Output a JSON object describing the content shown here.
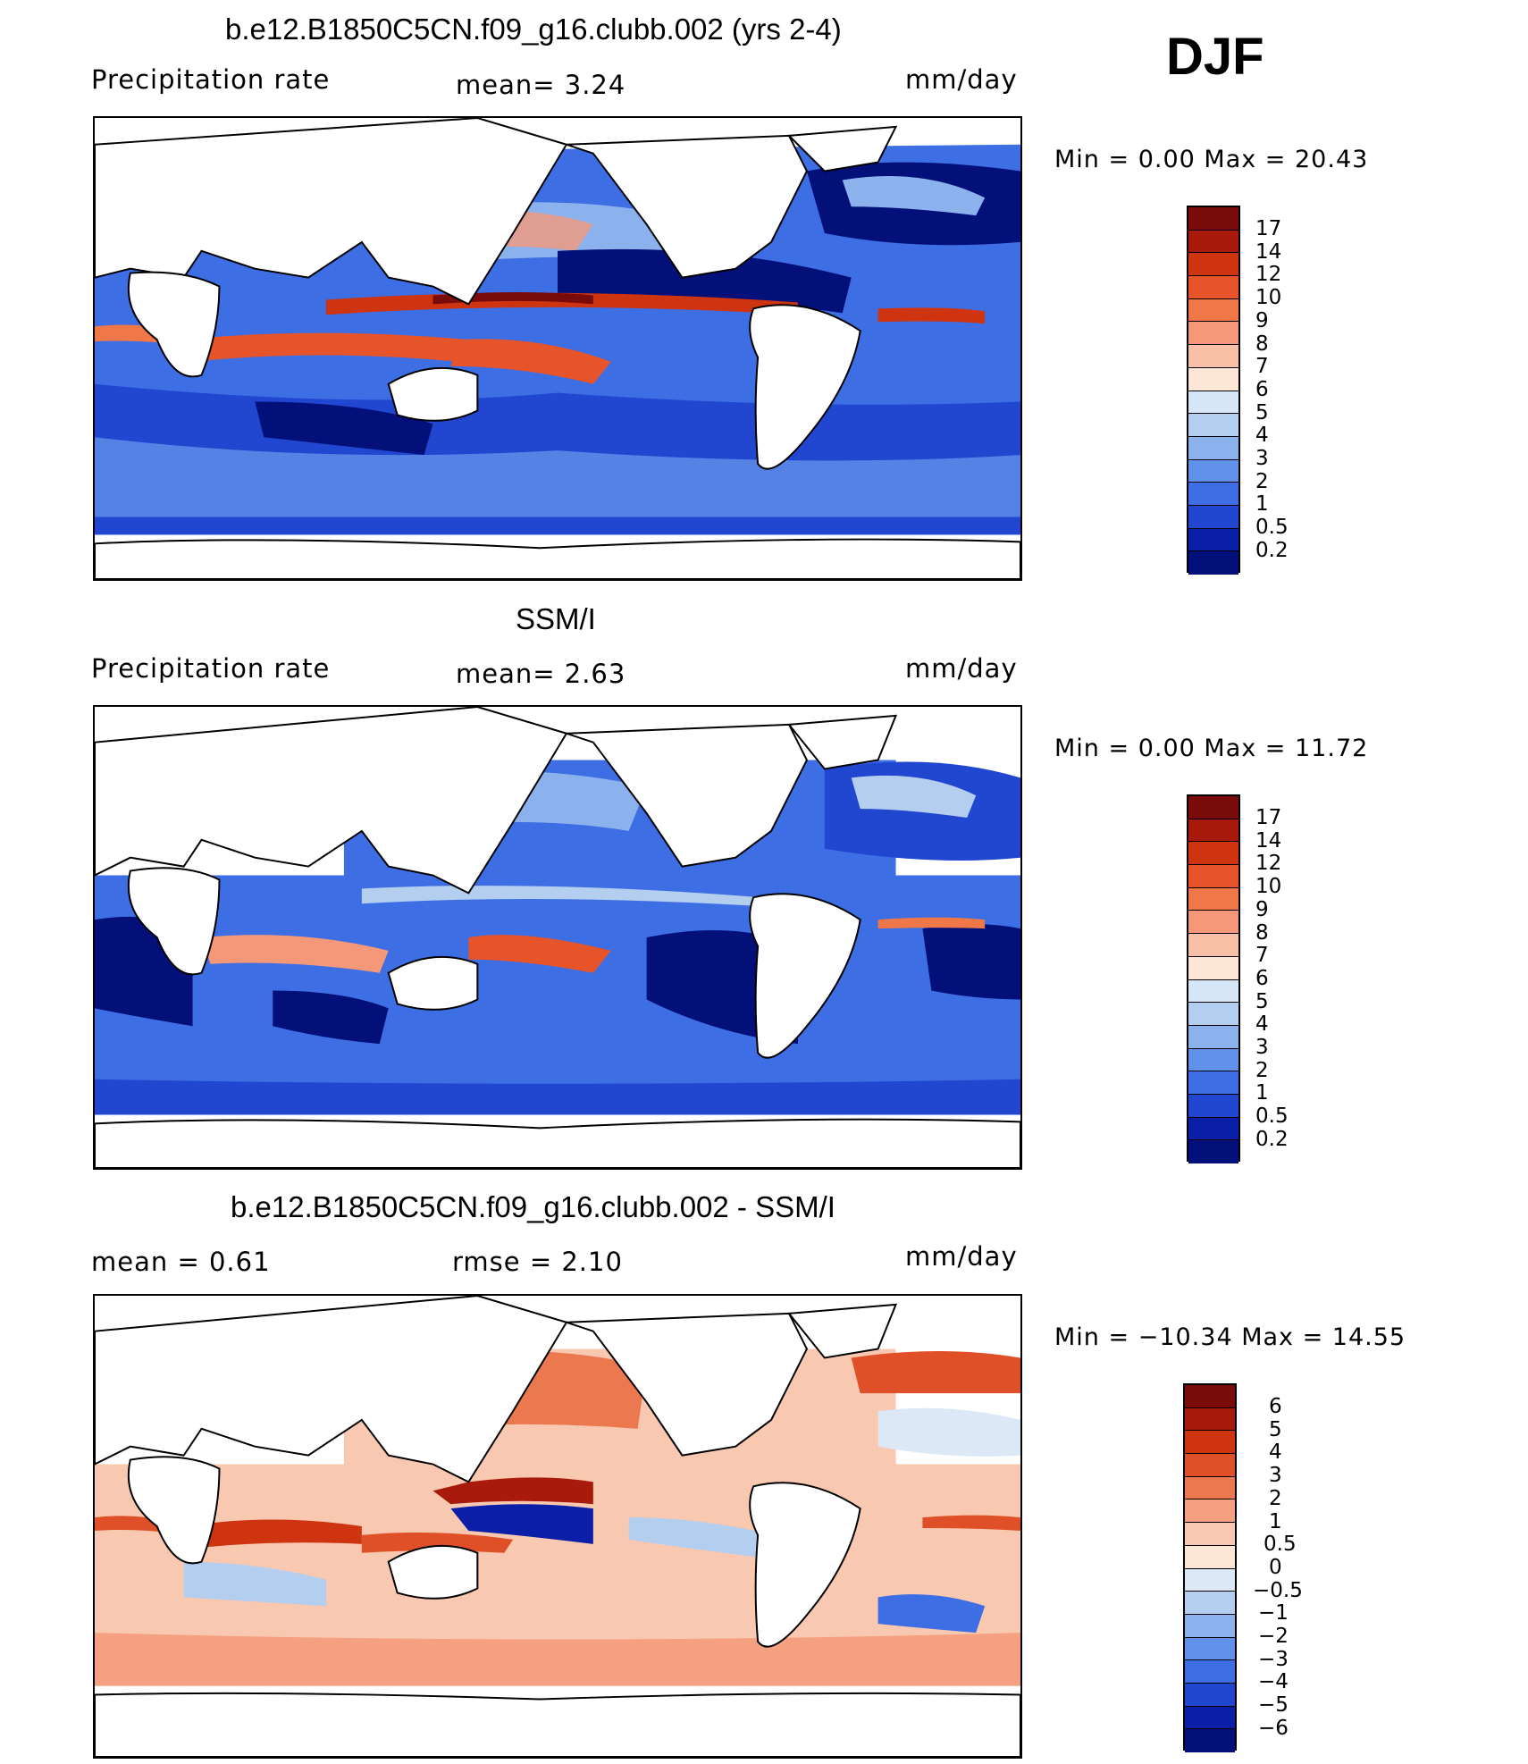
{
  "header": {
    "season": "DJF"
  },
  "panels": [
    {
      "title": "b.e12.B1850C5CN.f09_g16.clubb.002 (yrs 2-4)",
      "left_label": "Precipitation  rate",
      "stat1": "mean=    3.24",
      "stat2": "",
      "units": "mm/day",
      "minmax": "Min  =      0.00  Max  =     20.43",
      "levels": [
        "17",
        "14",
        "12",
        "10",
        "9",
        "8",
        "7",
        "6",
        "5",
        "4",
        "3",
        "2",
        "1",
        "0.5",
        "0.2"
      ]
    },
    {
      "title": "SSM/I",
      "left_label": "Precipitation  rate",
      "stat1": "mean=    2.63",
      "stat2": "",
      "units": "mm/day",
      "minmax": "Min  =      0.00  Max  =     11.72",
      "levels": [
        "17",
        "14",
        "12",
        "10",
        "9",
        "8",
        "7",
        "6",
        "5",
        "4",
        "3",
        "2",
        "1",
        "0.5",
        "0.2"
      ]
    },
    {
      "title": "b.e12.B1850C5CN.f09_g16.clubb.002 - SSM/I",
      "left_label": "mean  =     0.61",
      "stat1": "rmse  =     2.10",
      "stat2": "",
      "units": "mm/day",
      "minmax": "Min  = −10.34  Max  =     14.55",
      "levels": [
        "6",
        "5",
        "4",
        "3",
        "2",
        "1",
        "0.5",
        "0",
        "−0.5",
        "−1",
        "−2",
        "−3",
        "−4",
        "−5",
        "−6"
      ]
    }
  ],
  "colors": {
    "precip_scale": [
      "#7a0b0b",
      "#a81a0c",
      "#cf3410",
      "#e8542a",
      "#f07848",
      "#f5987a",
      "#f8c0a6",
      "#fde6d6",
      "#d6e6f6",
      "#b4cef0",
      "#8cb2ee",
      "#6192ea",
      "#3d6ee4",
      "#2146d0",
      "#0a1ea8",
      "#04107a"
    ],
    "diff_scale": [
      "#7a0b0b",
      "#a81a0c",
      "#cf3410",
      "#e05028",
      "#ec7850",
      "#f5a080",
      "#f9c8b0",
      "#fde6d6",
      "#dce8f6",
      "#b4cef0",
      "#8cb2ee",
      "#6192ea",
      "#3d6ee4",
      "#2146d0",
      "#0a1ea8",
      "#04107a"
    ]
  }
}
